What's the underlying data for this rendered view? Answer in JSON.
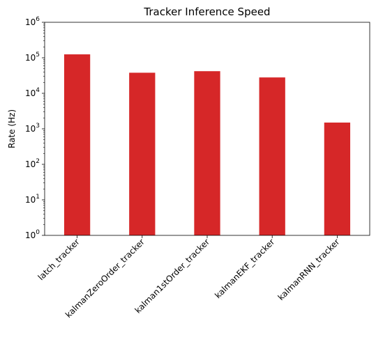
{
  "chart_data": {
    "type": "bar",
    "title": "Tracker Inference Speed",
    "xlabel": "",
    "ylabel": "Rate (Hz)",
    "yscale": "log",
    "ylim": [
      1,
      1000000
    ],
    "y_ticks": [
      {
        "base": "10",
        "exp": "0",
        "value": 1
      },
      {
        "base": "10",
        "exp": "1",
        "value": 10
      },
      {
        "base": "10",
        "exp": "2",
        "value": 100
      },
      {
        "base": "10",
        "exp": "3",
        "value": 1000
      },
      {
        "base": "10",
        "exp": "4",
        "value": 10000
      },
      {
        "base": "10",
        "exp": "5",
        "value": 100000
      },
      {
        "base": "10",
        "exp": "6",
        "value": 1000000
      }
    ],
    "categories": [
      "latch_tracker",
      "kalmanZeroOrder_tracker",
      "kalman1stOrder_tracker",
      "kalmanEKF_tracker",
      "kalmanRNN_tracker"
    ],
    "values": [
      125000,
      38000,
      42000,
      28000,
      1500
    ],
    "bar_color": "#d62728",
    "grid": false,
    "legend": "none"
  }
}
